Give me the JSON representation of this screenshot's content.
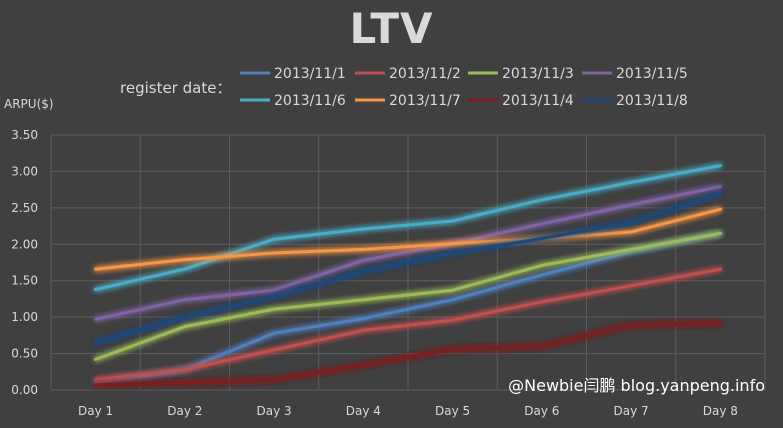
{
  "chart_data": {
    "type": "line",
    "title": "LTV",
    "ylabel": "ARPU($)",
    "xlabel": "",
    "legend_prefix": "register date：",
    "categories": [
      "Day 1",
      "Day 2",
      "Day 3",
      "Day 4",
      "Day 5",
      "Day 6",
      "Day 7",
      "Day 8"
    ],
    "ylim": [
      0,
      3.5
    ],
    "yticks": [
      "0.00",
      "0.50",
      "1.00",
      "1.50",
      "2.00",
      "2.50",
      "3.00",
      "3.50"
    ],
    "grid": true,
    "legend_position": "top",
    "series": [
      {
        "name": "2013/11/1",
        "color": "#4f81bd",
        "values": [
          0.1,
          0.28,
          0.78,
          0.98,
          1.24,
          1.58,
          1.9,
          2.15
        ]
      },
      {
        "name": "2013/11/2",
        "color": "#c0504d",
        "values": [
          0.14,
          0.28,
          0.55,
          0.82,
          0.96,
          1.21,
          1.43,
          1.66
        ]
      },
      {
        "name": "2013/11/3",
        "color": "#9bbb59",
        "values": [
          0.42,
          0.87,
          1.11,
          1.24,
          1.37,
          1.71,
          1.93,
          2.15
        ]
      },
      {
        "name": "2013/11/5",
        "color": "#8064a2",
        "values": [
          0.97,
          1.24,
          1.37,
          1.78,
          2.01,
          2.28,
          2.54,
          2.79
        ]
      },
      {
        "name": "2013/11/6",
        "color": "#4bacc6",
        "values": [
          1.38,
          1.66,
          2.07,
          2.21,
          2.32,
          2.61,
          2.85,
          3.08
        ]
      },
      {
        "name": "2013/11/7",
        "color": "#f79646",
        "values": [
          1.66,
          1.79,
          1.88,
          1.93,
          2.01,
          2.08,
          2.17,
          2.48
        ]
      },
      {
        "name": "2013/11/4",
        "color": "#7f1d1d",
        "values": [
          0.07,
          0.1,
          0.14,
          0.34,
          0.56,
          0.6,
          0.89,
          0.92
        ]
      },
      {
        "name": "2013/11/8",
        "color": "#1f497d",
        "values": [
          0.65,
          1.0,
          1.28,
          1.63,
          1.88,
          2.08,
          2.3,
          2.7
        ]
      }
    ]
  },
  "watermark": "@Newbie闫鹏 blog.yanpeng.info"
}
